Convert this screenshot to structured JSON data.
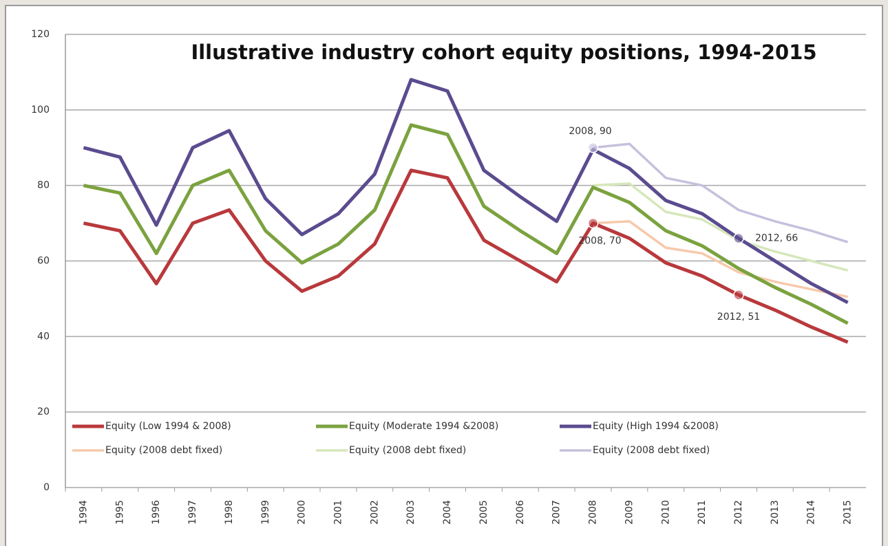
{
  "chart_data": {
    "type": "line",
    "title": "Illustrative industry cohort equity positions, 1994-2015",
    "categories": [
      "1994",
      "1995",
      "1996",
      "1997",
      "1998",
      "1999",
      "2000",
      "2001",
      "2002",
      "2003",
      "2004",
      "2005",
      "2006",
      "2007",
      "2008",
      "2009",
      "2010",
      "2011",
      "2012",
      "2013",
      "2014",
      "2015"
    ],
    "series": [
      {
        "name": "Equity (Low 1994 & 2008)",
        "color": "#b8393c",
        "values": [
          70,
          68,
          54,
          70,
          73.5,
          60,
          52,
          56,
          64.5,
          84,
          82,
          65.5,
          60,
          54.5,
          70,
          66,
          59.5,
          56,
          51,
          47,
          42.5,
          38.5
        ]
      },
      {
        "name": "Equity (Moderate 1994 &2008)",
        "color": "#7ba23f",
        "values": [
          80,
          78,
          62,
          80,
          84,
          68,
          59.5,
          64.5,
          73.5,
          96,
          93.5,
          74.5,
          68,
          62,
          79.5,
          75.5,
          68,
          64,
          58,
          53,
          48.5,
          43.5
        ]
      },
      {
        "name": "Equity (High 1994 &2008)",
        "color": "#5b4b8f",
        "values": [
          90,
          87.5,
          69.5,
          90,
          94.5,
          76.5,
          67,
          72.5,
          83,
          108,
          105,
          84,
          77,
          70.5,
          89.5,
          84.5,
          76,
          72.5,
          66,
          60,
          54,
          49
        ]
      },
      {
        "name": "Equity (2008 debt fixed)",
        "color": "#f6c9ab",
        "values": [
          null,
          null,
          null,
          null,
          null,
          null,
          null,
          null,
          null,
          null,
          null,
          null,
          null,
          null,
          70,
          70.5,
          63.5,
          62,
          57,
          54.5,
          52.5,
          50.5
        ]
      },
      {
        "name": "Equity (2008 debt fixed)",
        "color": "#d6e7ba",
        "values": [
          null,
          null,
          null,
          null,
          null,
          null,
          null,
          null,
          null,
          null,
          null,
          null,
          null,
          null,
          80,
          80.5,
          73,
          71,
          65.5,
          62.5,
          60,
          57.5
        ]
      },
      {
        "name": "Equity (2008 debt fixed)",
        "color": "#c6c0dd",
        "values": [
          null,
          null,
          null,
          null,
          null,
          null,
          null,
          null,
          null,
          null,
          null,
          null,
          null,
          null,
          90,
          91,
          82,
          80,
          73.5,
          70.5,
          68,
          65
        ]
      }
    ],
    "annotations": [
      "2008, 90",
      "2008, 70",
      "2012, 66",
      "2012, 51"
    ],
    "ylim": [
      0,
      120
    ],
    "yticks": [
      0,
      20,
      40,
      60,
      80,
      100,
      120
    ],
    "grid": true
  }
}
